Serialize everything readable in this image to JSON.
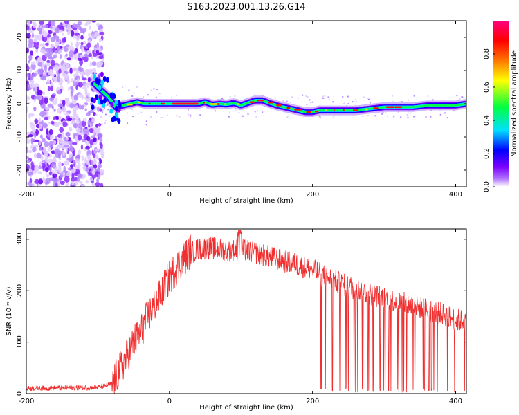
{
  "title": "S163.2023.001.13.26.G14",
  "chart_data": [
    {
      "type": "heatmap",
      "xlabel": "Height of straight line (km)",
      "ylabel": "Frequency (Hz)",
      "xlim": [
        -200,
        415
      ],
      "ylim": [
        -25,
        25
      ],
      "xticks": [
        -200,
        0,
        200,
        400
      ],
      "yticks": [
        20,
        10,
        0,
        -10,
        -20
      ],
      "colorbar": {
        "label": "Normalized spectral amplitude",
        "range": [
          0.0,
          1.0
        ],
        "ticks": [
          0.0,
          0.2,
          0.4,
          0.6,
          0.8
        ]
      },
      "colors": [
        "#ffffff",
        "#7a00ff",
        "#0000ff",
        "#00e0ff",
        "#00ff40",
        "#ffff00",
        "#ff0000",
        "#ff0080"
      ],
      "noise_region_x": [
        -200,
        -105
      ],
      "ridge": {
        "x": [
          -105,
          -95,
          -85,
          -75,
          -65,
          -55,
          -45,
          -35,
          -20,
          0,
          20,
          40,
          50,
          60,
          70,
          80,
          90,
          100,
          110,
          120,
          130,
          140,
          150,
          160,
          170,
          180,
          190,
          200,
          210,
          220,
          240,
          260,
          280,
          300,
          320,
          340,
          360,
          380,
          400,
          415
        ],
        "y": [
          6,
          4,
          2,
          -1,
          -0.5,
          0,
          0.5,
          0,
          0,
          0,
          0,
          0,
          0.5,
          -0.3,
          0,
          -0.2,
          0.2,
          -0.5,
          0.3,
          1,
          1,
          0.2,
          -0.5,
          -1,
          -1.5,
          -2,
          -2.5,
          -2.5,
          -2,
          -2,
          -2,
          -2,
          -1.5,
          -1,
          -1,
          -1,
          -0.5,
          -0.5,
          -0.5,
          0
        ]
      }
    },
    {
      "type": "line",
      "xlabel": "Height of straight line (km)",
      "ylabel": "SNR (10 * v/v)",
      "xlim": [
        -200,
        415
      ],
      "ylim": [
        0,
        320
      ],
      "xticks": [
        -200,
        0,
        200,
        400
      ],
      "yticks": [
        0,
        100,
        200,
        300
      ],
      "series": [
        {
          "color": "#f03030",
          "x": [
            -200,
            -150,
            -100,
            -80,
            -70,
            -60,
            -50,
            -40,
            -30,
            -20,
            -10,
            0,
            10,
            20,
            30,
            40,
            60,
            80,
            100,
            120,
            140,
            160,
            180,
            200,
            210,
            220,
            240,
            260,
            280,
            300,
            320,
            340,
            360,
            380,
            400,
            415
          ],
          "y": [
            10,
            11,
            12,
            18,
            45,
            70,
            100,
            120,
            150,
            175,
            200,
            225,
            245,
            262,
            278,
            285,
            288,
            282,
            285,
            278,
            270,
            262,
            255,
            245,
            238,
            230,
            218,
            208,
            198,
            190,
            183,
            175,
            168,
            160,
            148,
            145
          ]
        }
      ]
    }
  ]
}
